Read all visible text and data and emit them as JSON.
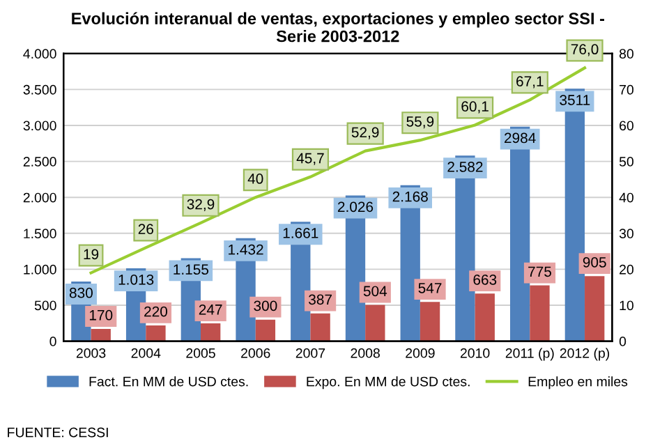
{
  "chart_data": {
    "type": "bar",
    "title": "Evolución interanual de ventas, exportaciones y empleo sector SSI -\nSerie 2003-2012",
    "categories": [
      "2003",
      "2004",
      "2005",
      "2006",
      "2007",
      "2008",
      "2009",
      "2010",
      "2011 (p)",
      "2012 (p)"
    ],
    "series": [
      {
        "name": "Fact. En MM de USD ctes.",
        "color": "#4f81bd",
        "values": [
          830,
          1013,
          1155,
          1432,
          1661,
          2026,
          2168,
          2582,
          2984,
          3511
        ],
        "value_labels": [
          "830",
          "1.013",
          "1.155",
          "1.432",
          "1.661",
          "2.026",
          "2.168",
          "2.582",
          "2984",
          "3511"
        ]
      },
      {
        "name": "Expo. En MM de USD ctes.",
        "color": "#c0504d",
        "values": [
          170,
          220,
          247,
          300,
          387,
          504,
          547,
          663,
          775,
          905
        ],
        "value_labels": [
          "170",
          "220",
          "247",
          "300",
          "387",
          "504",
          "547",
          "663",
          "775",
          "905"
        ]
      },
      {
        "name": "Empleo en miles",
        "type": "line",
        "axis": "y2",
        "color": "#9acd32",
        "values": [
          19,
          26,
          32.9,
          40,
          45.7,
          52.9,
          55.9,
          60.1,
          67.1,
          76.0
        ],
        "value_labels": [
          "19",
          "26",
          "32,9",
          "40",
          "45,7",
          "52,9",
          "55,9",
          "60,1",
          "67,1",
          "76,0"
        ]
      }
    ],
    "ylim": [
      0,
      4000
    ],
    "yticks": [
      {
        "value": 0,
        "label": "0"
      },
      {
        "value": 500,
        "label": "500"
      },
      {
        "value": 1000,
        "label": "1.000"
      },
      {
        "value": 1500,
        "label": "1.500"
      },
      {
        "value": 2000,
        "label": "2.000"
      },
      {
        "value": 2500,
        "label": "2.500"
      },
      {
        "value": 3000,
        "label": "3.000"
      },
      {
        "value": 3500,
        "label": "3.500"
      },
      {
        "value": 4000,
        "label": "4.000"
      }
    ],
    "y2lim": [
      0,
      80
    ],
    "y2ticks": [
      0,
      10,
      20,
      30,
      40,
      50,
      60,
      70,
      80
    ],
    "grid": "y",
    "legend": "bottom",
    "marker": "none",
    "line_style": "solid",
    "annotations": [
      "FUENTE: CESSI"
    ]
  }
}
